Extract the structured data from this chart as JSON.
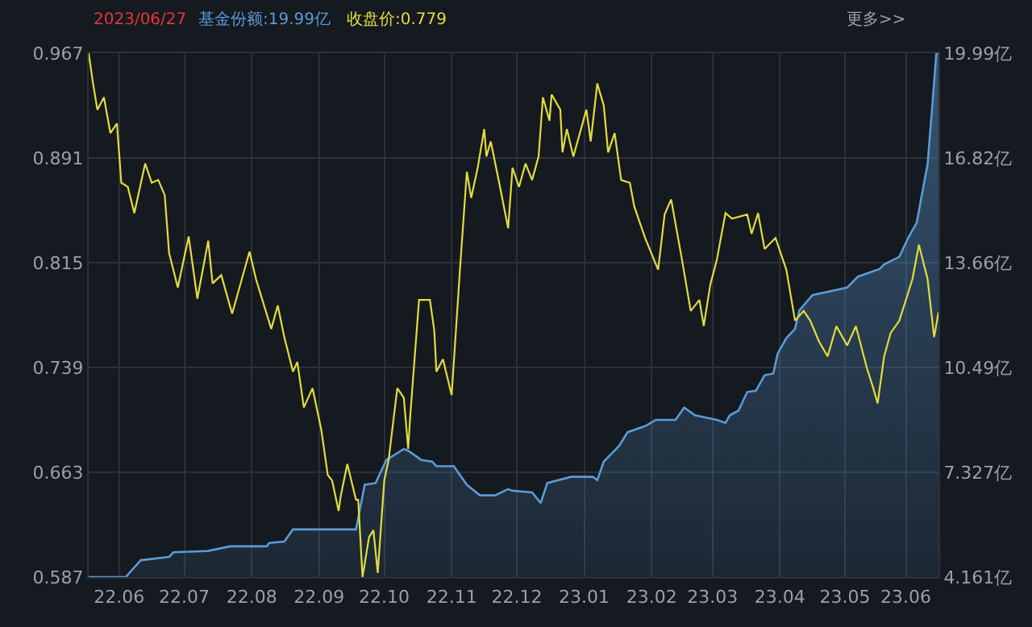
{
  "chart_data": {
    "type": "line",
    "annotations": [
      "2023/06/27",
      "基金份额:19.99亿",
      "收盘价:0.779",
      "更多>>"
    ],
    "xlim": [
      "2022-06-01",
      "2023-06-27"
    ],
    "xticks": [
      {
        "value": "2022-06-15",
        "label": "22.06"
      },
      {
        "value": "2022-07-15",
        "label": "22.07"
      },
      {
        "value": "2022-08-15",
        "label": "22.08"
      },
      {
        "value": "2022-09-15",
        "label": "22.09"
      },
      {
        "value": "2022-10-15",
        "label": "22.10"
      },
      {
        "value": "2022-11-15",
        "label": "22.11"
      },
      {
        "value": "2022-12-15",
        "label": "22.12"
      },
      {
        "value": "2023-01-15",
        "label": "23.01"
      },
      {
        "value": "2023-02-15",
        "label": "23.02"
      },
      {
        "value": "2023-03-15",
        "label": "23.03"
      },
      {
        "value": "2023-04-15",
        "label": "23.04"
      },
      {
        "value": "2023-05-15",
        "label": "23.05"
      },
      {
        "value": "2023-06-12",
        "label": "23.06"
      }
    ],
    "ylim": [
      0.587,
      0.967
    ],
    "yticks": [
      0.587,
      0.663,
      0.739,
      0.815,
      0.891,
      0.967
    ],
    "y2lim": [
      4.161,
      19.99
    ],
    "y2ticks": [
      {
        "value": 4.161,
        "label": "4.161亿"
      },
      {
        "value": 7.327,
        "label": "7.327亿"
      },
      {
        "value": 10.49,
        "label": "10.49亿"
      },
      {
        "value": 13.66,
        "label": "13.66亿"
      },
      {
        "value": 16.82,
        "label": "16.82亿"
      },
      {
        "value": 19.99,
        "label": "19.99亿"
      }
    ],
    "grid": true,
    "series": [
      {
        "type": "area",
        "axis": "y2",
        "color": "#5b9bd5",
        "x": [
          "2022-06-01",
          "2022-06-18",
          "2022-06-25",
          "2022-07-08",
          "2022-07-10",
          "2022-07-26",
          "2022-08-05",
          "2022-08-22",
          "2022-08-23",
          "2022-08-30",
          "2022-09-03",
          "2022-10-02",
          "2022-10-06",
          "2022-10-11",
          "2022-10-16",
          "2022-10-24",
          "2022-10-26",
          "2022-11-01",
          "2022-11-06",
          "2022-11-08",
          "2022-11-16",
          "2022-11-22",
          "2022-11-28",
          "2022-12-05",
          "2022-12-11",
          "2022-12-13",
          "2022-12-22",
          "2022-12-26",
          "2022-12-29",
          "2023-01-09",
          "2023-01-19",
          "2023-01-21",
          "2023-01-24",
          "2023-01-31",
          "2023-02-04",
          "2023-02-12",
          "2023-02-17",
          "2023-02-26",
          "2023-03-02",
          "2023-03-07",
          "2023-03-17",
          "2023-03-21",
          "2023-03-23",
          "2023-03-27",
          "2023-03-31",
          "2023-04-04",
          "2023-04-08",
          "2023-04-12",
          "2023-04-14",
          "2023-04-18",
          "2023-04-22",
          "2023-04-24",
          "2023-04-30",
          "2023-05-16",
          "2023-05-21",
          "2023-05-31",
          "2023-06-02",
          "2023-06-09",
          "2023-06-13",
          "2023-06-17",
          "2023-06-20",
          "2023-06-22",
          "2023-06-24",
          "2023-06-26",
          "2023-06-27"
        ],
        "values": [
          4.161,
          4.161,
          4.67,
          4.77,
          4.91,
          4.95,
          5.09,
          5.09,
          5.19,
          5.23,
          5.6,
          5.6,
          6.95,
          7.0,
          7.7,
          8.03,
          7.98,
          7.7,
          7.65,
          7.51,
          7.51,
          6.95,
          6.63,
          6.63,
          6.82,
          6.77,
          6.72,
          6.4,
          7.0,
          7.19,
          7.19,
          7.09,
          7.65,
          8.12,
          8.54,
          8.72,
          8.91,
          8.91,
          9.28,
          9.05,
          8.91,
          8.82,
          9.05,
          9.19,
          9.75,
          9.79,
          10.26,
          10.31,
          10.91,
          11.38,
          11.66,
          12.22,
          12.68,
          12.91,
          13.24,
          13.47,
          13.61,
          13.84,
          14.4,
          14.87,
          15.94,
          16.64,
          18.27,
          19.99,
          19.99
        ]
      },
      {
        "axis": "y",
        "color": "#e3dc3c",
        "x": [
          "2022-06-01",
          "2022-06-03",
          "2022-06-05",
          "2022-06-08",
          "2022-06-11",
          "2022-06-14",
          "2022-06-16",
          "2022-06-19",
          "2022-06-22",
          "2022-06-27",
          "2022-06-30",
          "2022-07-03",
          "2022-07-06",
          "2022-07-08",
          "2022-07-12",
          "2022-07-17",
          "2022-07-21",
          "2022-07-26",
          "2022-07-28",
          "2022-08-01",
          "2022-08-06",
          "2022-08-14",
          "2022-08-17",
          "2022-08-24",
          "2022-08-27",
          "2022-08-30",
          "2022-09-03",
          "2022-09-05",
          "2022-09-08",
          "2022-09-12",
          "2022-09-16",
          "2022-09-19",
          "2022-09-21",
          "2022-09-24",
          "2022-09-25",
          "2022-09-28",
          "2022-10-02",
          "2022-10-03",
          "2022-10-05",
          "2022-10-08",
          "2022-10-10",
          "2022-10-12",
          "2022-10-15",
          "2022-10-17",
          "2022-10-21",
          "2022-10-24",
          "2022-10-26",
          "2022-10-27",
          "2022-10-31",
          "2022-11-05",
          "2022-11-07",
          "2022-11-08",
          "2022-11-11",
          "2022-11-15",
          "2022-11-19",
          "2022-11-22",
          "2022-11-24",
          "2022-11-27",
          "2022-11-30",
          "2022-12-01",
          "2022-12-03",
          "2022-12-07",
          "2022-12-11",
          "2022-12-13",
          "2022-12-16",
          "2022-12-19",
          "2022-12-22",
          "2022-12-25",
          "2022-12-27",
          "2022-12-30",
          "2022-12-31",
          "2023-01-04",
          "2023-01-05",
          "2023-01-07",
          "2023-01-10",
          "2023-01-16",
          "2023-01-18",
          "2023-01-21",
          "2023-01-24",
          "2023-01-26",
          "2023-01-29",
          "2023-02-01",
          "2023-02-05",
          "2023-02-07",
          "2023-02-12",
          "2023-02-18",
          "2023-02-21",
          "2023-02-24",
          "2023-03-01",
          "2023-03-05",
          "2023-03-09",
          "2023-03-11",
          "2023-03-14",
          "2023-03-17",
          "2023-03-21",
          "2023-03-24",
          "2023-03-31",
          "2023-04-02",
          "2023-04-05",
          "2023-04-08",
          "2023-04-13",
          "2023-04-18",
          "2023-04-22",
          "2023-04-26",
          "2023-04-29",
          "2023-05-03",
          "2023-05-07",
          "2023-05-11",
          "2023-05-16",
          "2023-05-20",
          "2023-05-25",
          "2023-05-28",
          "2023-05-30",
          "2023-06-02",
          "2023-06-05",
          "2023-06-09",
          "2023-06-15",
          "2023-06-18",
          "2023-06-22",
          "2023-06-25",
          "2023-06-27"
        ],
        "values": [
          0.967,
          0.945,
          0.926,
          0.935,
          0.909,
          0.916,
          0.873,
          0.87,
          0.851,
          0.887,
          0.873,
          0.875,
          0.864,
          0.822,
          0.797,
          0.834,
          0.789,
          0.831,
          0.8,
          0.806,
          0.778,
          0.823,
          0.803,
          0.767,
          0.784,
          0.761,
          0.736,
          0.743,
          0.71,
          0.724,
          0.694,
          0.661,
          0.657,
          0.635,
          0.646,
          0.669,
          0.643,
          0.643,
          0.587,
          0.616,
          0.621,
          0.59,
          0.657,
          0.672,
          0.724,
          0.717,
          0.68,
          0.705,
          0.788,
          0.788,
          0.766,
          0.736,
          0.745,
          0.719,
          0.814,
          0.881,
          0.862,
          0.884,
          0.912,
          0.892,
          0.903,
          0.872,
          0.84,
          0.884,
          0.87,
          0.887,
          0.875,
          0.892,
          0.935,
          0.918,
          0.937,
          0.926,
          0.895,
          0.912,
          0.892,
          0.926,
          0.903,
          0.945,
          0.929,
          0.895,
          0.909,
          0.875,
          0.873,
          0.856,
          0.833,
          0.81,
          0.85,
          0.861,
          0.817,
          0.78,
          0.788,
          0.769,
          0.799,
          0.817,
          0.851,
          0.847,
          0.85,
          0.836,
          0.851,
          0.825,
          0.833,
          0.81,
          0.773,
          0.78,
          0.773,
          0.758,
          0.747,
          0.769,
          0.755,
          0.769,
          0.739,
          0.724,
          0.713,
          0.747,
          0.764,
          0.773,
          0.803,
          0.828,
          0.803,
          0.761,
          0.779
        ]
      }
    ]
  }
}
